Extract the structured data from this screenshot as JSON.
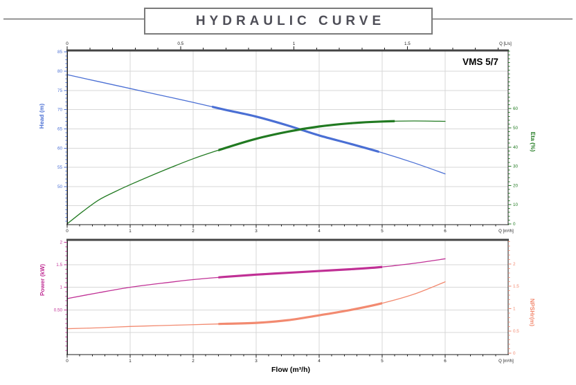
{
  "page": {
    "title": "HYDRAULIC CURVE",
    "model": "VMS 5/7"
  },
  "colors": {
    "head": "#4a6fd4",
    "eta": "#217a21",
    "power": "#c03095",
    "npsh": "#f28a70",
    "grid": "#d7d7d7",
    "spine": "#1c1c1c",
    "spine_top": "#444444",
    "axis_text": "#1a1a1a",
    "title_text": "#4e4e57",
    "title_box_border": "#7a7a7a"
  },
  "chart_data": [
    {
      "type": "line",
      "name": "performance-chart",
      "corner_label": "VMS 5/7",
      "x_bottom": {
        "label": "Q [m³/h]",
        "min": 0,
        "max": 7,
        "majors": [
          0,
          1,
          2,
          3,
          4,
          5,
          6
        ],
        "minor_step": 0.2,
        "grid": [
          1,
          2,
          3,
          4,
          5,
          6
        ]
      },
      "x_top": {
        "label": "Q [L/s]",
        "majors": [
          0,
          0.5,
          1,
          1.5
        ],
        "minor_step": 0.1,
        "scale_to_bottom": 3.6
      },
      "y_left": {
        "label": "Head (m)",
        "min": 40.1,
        "max": 85.4,
        "majors": [
          85,
          80,
          75,
          70,
          65,
          60,
          55,
          50
        ],
        "minor_step": 1,
        "grid": [
          80,
          75,
          70,
          65,
          60,
          55,
          50,
          45
        ],
        "color_key": "head"
      },
      "y_right": {
        "label": "Eta (%)",
        "min": -0.4,
        "max": 90.3,
        "majors": [
          60,
          50,
          40,
          30,
          20,
          10,
          0
        ],
        "minor_step": 2,
        "color_key": "eta"
      },
      "series": [
        {
          "name": "head-curve",
          "axis": "left",
          "color_key": "head",
          "label": "Head",
          "bold_range": [
            2.3,
            4.95
          ],
          "points": [
            [
              0,
              79.1
            ],
            [
              0.5,
              77.3
            ],
            [
              1,
              75.5
            ],
            [
              1.5,
              73.7
            ],
            [
              2,
              71.9
            ],
            [
              2.5,
              70.0
            ],
            [
              3,
              68.2
            ],
            [
              3.5,
              65.9
            ],
            [
              4,
              63.3
            ],
            [
              4.5,
              61.1
            ],
            [
              5,
              58.8
            ],
            [
              5.5,
              56.2
            ],
            [
              6,
              53.3
            ]
          ]
        },
        {
          "name": "eta-curve",
          "axis": "right",
          "color_key": "eta",
          "label": "Eta",
          "bold_range": [
            2.4,
            5.2
          ],
          "points": [
            [
              0,
              0
            ],
            [
              0.25,
              6.5
            ],
            [
              0.5,
              12.4
            ],
            [
              0.75,
              16.6
            ],
            [
              1,
              20.4
            ],
            [
              1.5,
              27.4
            ],
            [
              2,
              33.9
            ],
            [
              2.5,
              39.4
            ],
            [
              3,
              44.3
            ],
            [
              3.5,
              48.0
            ],
            [
              4,
              50.7
            ],
            [
              4.5,
              52.4
            ],
            [
              5,
              53.3
            ],
            [
              5.5,
              53.6
            ],
            [
              6,
              53.4
            ]
          ]
        }
      ]
    },
    {
      "type": "line",
      "name": "power-npsh-chart",
      "x_title": "Flow (m³/h)",
      "x_bottom": {
        "label": "Q [m³/h]",
        "min": 0,
        "max": 7,
        "majors": [
          0,
          1,
          2,
          3,
          4,
          5,
          6
        ],
        "minor_step": 0.2,
        "grid": [
          1,
          2,
          3,
          4,
          5,
          6
        ]
      },
      "y_left": {
        "label": "Power (kW)",
        "min": -0.49,
        "max": 2.05,
        "majors": [
          2,
          1.5,
          1,
          0.5
        ],
        "major_labels": [
          "2",
          "1.5",
          "1",
          "0.50"
        ],
        "minor_step": 0.1,
        "grid": [
          1.5,
          1,
          0.5,
          0
        ],
        "color_key": "power"
      },
      "y_right": {
        "label": "NPSHr(m)",
        "min": -0.03,
        "max": 2.54,
        "majors": [
          2,
          1.5,
          1,
          0.5,
          0
        ],
        "minor_step": 0.1,
        "color_key": "npsh"
      },
      "series": [
        {
          "name": "power-curve",
          "axis": "left",
          "color_key": "power",
          "label": "Power",
          "bold_range": [
            2.4,
            5.0
          ],
          "points": [
            [
              0,
              0.75
            ],
            [
              0.5,
              0.88
            ],
            [
              1,
              1.0
            ],
            [
              1.5,
              1.09
            ],
            [
              2,
              1.17
            ],
            [
              2.5,
              1.23
            ],
            [
              3,
              1.28
            ],
            [
              3.5,
              1.32
            ],
            [
              4,
              1.36
            ],
            [
              4.5,
              1.4
            ],
            [
              5,
              1.45
            ],
            [
              5.5,
              1.53
            ],
            [
              6,
              1.63
            ]
          ]
        },
        {
          "name": "npsh-curve",
          "axis": "right",
          "color_key": "npsh",
          "label": "NPSHr",
          "bold_range": [
            2.4,
            5.0
          ],
          "points": [
            [
              0,
              0.55
            ],
            [
              0.5,
              0.57
            ],
            [
              1,
              0.6
            ],
            [
              1.5,
              0.62
            ],
            [
              2,
              0.64
            ],
            [
              2.5,
              0.66
            ],
            [
              3,
              0.68
            ],
            [
              3.5,
              0.74
            ],
            [
              4,
              0.85
            ],
            [
              4.5,
              0.97
            ],
            [
              5,
              1.12
            ],
            [
              5.5,
              1.32
            ],
            [
              6,
              1.6
            ]
          ]
        }
      ]
    }
  ]
}
